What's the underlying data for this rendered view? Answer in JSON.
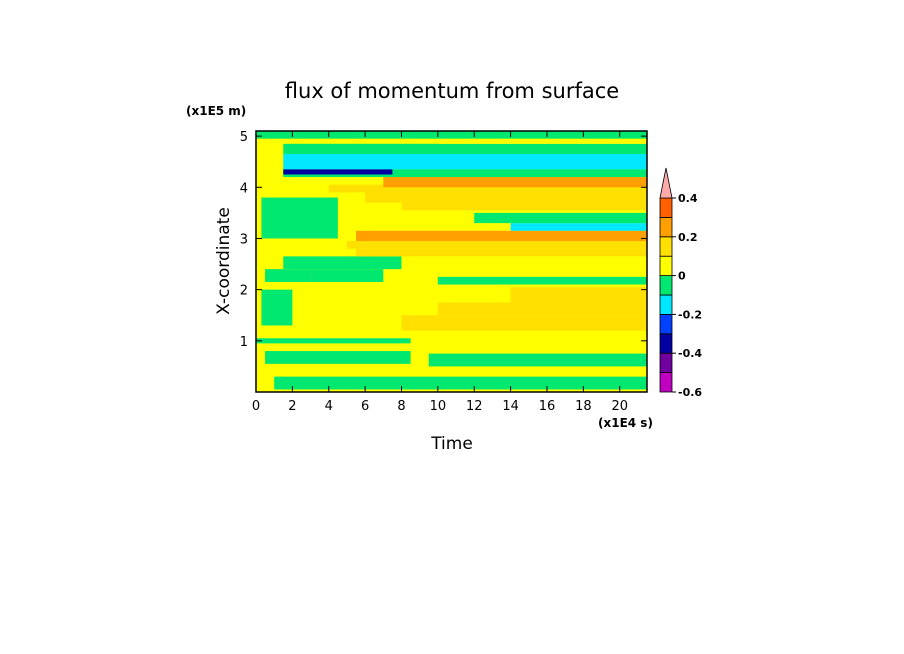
{
  "chart_data": {
    "type": "heatmap",
    "title": "flux of momentum from surface",
    "xlabel": "Time",
    "ylabel": "X-coordinate",
    "x_unit": "(x1E4 s)",
    "y_unit": "(x1E5 m)",
    "xlim": [
      0,
      21.5
    ],
    "ylim": [
      0,
      5.1
    ],
    "x_ticks": [
      0,
      2,
      4,
      6,
      8,
      10,
      12,
      14,
      16,
      18,
      20
    ],
    "x_tick_labels": [
      "0",
      "2",
      "4",
      "6",
      "8",
      "10",
      "12",
      "14",
      "16",
      "18",
      "20"
    ],
    "y_ticks": [
      1,
      2,
      3,
      4,
      5
    ],
    "y_tick_labels": [
      "1",
      "2",
      "3",
      "4",
      "5"
    ],
    "colorbar": {
      "levels": [
        -0.6,
        -0.5,
        -0.4,
        -0.3,
        -0.2,
        -0.1,
        0,
        0.1,
        0.2,
        0.3,
        0.4,
        0.5
      ],
      "colors": [
        "#c000c0",
        "#7000a0",
        "#0000a0",
        "#0040ff",
        "#00e8ff",
        "#00e870",
        "#ffff00",
        "#ffe000",
        "#ffa000",
        "#ff6000",
        "#ff8888",
        "#ffaaaa"
      ],
      "tick_values": [
        -0.6,
        -0.4,
        -0.2,
        0,
        0.2,
        0.4
      ],
      "tick_labels": [
        "-0.6",
        "-0.4",
        "-0.2",
        "0",
        "0.2",
        "0.4"
      ],
      "extend": "max"
    },
    "background_value": 0.05,
    "regions": [
      {
        "x": [
          0,
          21.5
        ],
        "y": [
          0,
          0.2
        ],
        "value": 0.05
      },
      {
        "x": [
          1,
          21.5
        ],
        "y": [
          0.05,
          0.3
        ],
        "value": -0.05
      },
      {
        "x": [
          9.5,
          21.5
        ],
        "y": [
          0.5,
          0.75
        ],
        "value": -0.05
      },
      {
        "x": [
          0.5,
          8.5
        ],
        "y": [
          0.55,
          0.8
        ],
        "value": -0.05
      },
      {
        "x": [
          0,
          8.5
        ],
        "y": [
          0.95,
          1.05
        ],
        "value": -0.05
      },
      {
        "x": [
          8,
          21.5
        ],
        "y": [
          1.2,
          1.5
        ],
        "value": 0.12
      },
      {
        "x": [
          10,
          21.5
        ],
        "y": [
          1.5,
          1.75
        ],
        "value": 0.15
      },
      {
        "x": [
          0.3,
          2
        ],
        "y": [
          1.3,
          2.0
        ],
        "value": -0.05
      },
      {
        "x": [
          14,
          21.5
        ],
        "y": [
          1.75,
          2.05
        ],
        "value": 0.15
      },
      {
        "x": [
          10,
          21.5
        ],
        "y": [
          2.1,
          2.25
        ],
        "value": -0.05
      },
      {
        "x": [
          0.5,
          3
        ],
        "y": [
          2.15,
          2.4
        ],
        "value": -0.05
      },
      {
        "x": [
          1.5,
          8
        ],
        "y": [
          2.4,
          2.65
        ],
        "value": -0.05
      },
      {
        "x": [
          3,
          7
        ],
        "y": [
          2.15,
          2.4
        ],
        "value": -0.05
      },
      {
        "x": [
          5.5,
          21.5
        ],
        "y": [
          2.65,
          2.8
        ],
        "value": 0.12
      },
      {
        "x": [
          5,
          21.5
        ],
        "y": [
          2.8,
          2.95
        ],
        "value": 0.15
      },
      {
        "x": [
          5.5,
          21.5
        ],
        "y": [
          2.95,
          3.15
        ],
        "value": 0.25
      },
      {
        "x": [
          14,
          21.5
        ],
        "y": [
          3.15,
          3.3
        ],
        "value": -0.15
      },
      {
        "x": [
          12,
          21.5
        ],
        "y": [
          3.3,
          3.5
        ],
        "value": -0.05
      },
      {
        "x": [
          0.3,
          4.5
        ],
        "y": [
          3.0,
          3.8
        ],
        "value": -0.05
      },
      {
        "x": [
          8,
          21.5
        ],
        "y": [
          3.55,
          3.7
        ],
        "value": 0.12
      },
      {
        "x": [
          6,
          21.5
        ],
        "y": [
          3.7,
          3.9
        ],
        "value": 0.15
      },
      {
        "x": [
          4,
          21.5
        ],
        "y": [
          3.9,
          4.05
        ],
        "value": 0.15
      },
      {
        "x": [
          7,
          21.5
        ],
        "y": [
          4.0,
          4.2
        ],
        "value": 0.25
      },
      {
        "x": [
          1.5,
          21.5
        ],
        "y": [
          4.2,
          4.35
        ],
        "value": -0.05
      },
      {
        "x": [
          1.5,
          21.5
        ],
        "y": [
          4.35,
          4.65
        ],
        "value": -0.15
      },
      {
        "x": [
          1.5,
          21.5
        ],
        "y": [
          4.65,
          4.85
        ],
        "value": -0.05
      },
      {
        "x": [
          1.5,
          7.5
        ],
        "y": [
          4.25,
          4.35
        ],
        "value": -0.35
      },
      {
        "x": [
          10,
          21.5
        ],
        "y": [
          4.85,
          4.95
        ],
        "value": 0.05
      },
      {
        "x": [
          0,
          21.5
        ],
        "y": [
          4.95,
          5.1
        ],
        "value": -0.05
      }
    ]
  }
}
